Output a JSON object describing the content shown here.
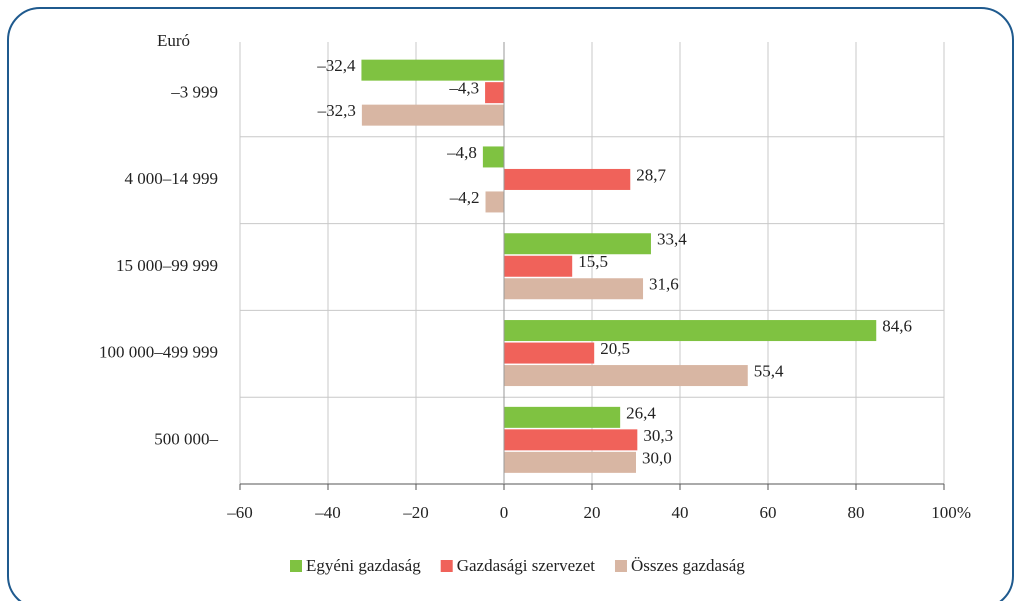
{
  "chart_data": {
    "type": "bar",
    "orientation": "horizontal",
    "y_axis_label": "Euró",
    "x_axis_unit": "%",
    "categories": [
      "–3 999",
      "4 000–14 999",
      "15 000–99 999",
      "100 000–499 999",
      "500 000–"
    ],
    "series": [
      {
        "name": "Egyéni gazdaság",
        "color": "#7fc241",
        "values": [
          -32.4,
          -4.8,
          33.4,
          84.6,
          26.4
        ],
        "value_labels": [
          "–32,4",
          "–4,8",
          "33,4",
          "84,6",
          "26,4"
        ]
      },
      {
        "name": "Gazdasági szervezet",
        "color": "#f0625a",
        "values": [
          -4.3,
          28.7,
          15.5,
          20.5,
          30.3
        ],
        "value_labels": [
          "–4,3",
          "28,7",
          "15,5",
          "20,5",
          "30,3"
        ]
      },
      {
        "name": "Összes gazdaság",
        "color": "#d8b6a3",
        "values": [
          -32.3,
          -4.2,
          31.6,
          55.4,
          30.0
        ],
        "value_labels": [
          "–32,3",
          "–4,2",
          "31,6",
          "55,4",
          "30,0"
        ]
      }
    ],
    "xlim": [
      -60,
      100
    ],
    "xticks": [
      {
        "value": -60,
        "label": "–60"
      },
      {
        "value": -40,
        "label": "–40"
      },
      {
        "value": -20,
        "label": "–20"
      },
      0,
      20,
      40,
      60,
      80,
      100
    ],
    "grid": true,
    "legend": "bottom"
  }
}
